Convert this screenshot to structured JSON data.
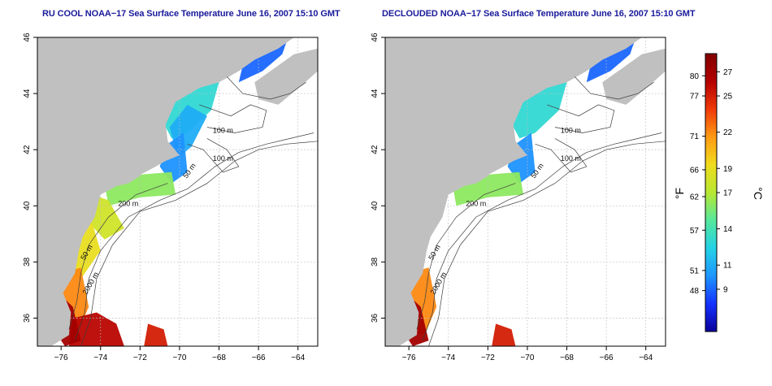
{
  "panels": [
    {
      "title": "RU COOL NOAA−17 Sea Surface Temperature June 16, 2007 15:10 GMT",
      "contour_labels": [
        "100 m",
        "100 m",
        "50 m",
        "200 m",
        "50 m",
        "2000 m"
      ],
      "coverage": "full"
    },
    {
      "title": "DECLOUDED NOAA−17 Sea Surface Temperature June 16, 2007 15:10 GMT",
      "contour_labels": [
        "100 m",
        "100 m",
        "50 m",
        "200 m",
        "50 m",
        "2000 m"
      ],
      "coverage": "declouded"
    }
  ],
  "axes": {
    "x_ticks": [
      "−76",
      "−74",
      "−72",
      "−70",
      "−68",
      "−66",
      "−64"
    ],
    "x_values": [
      -76,
      -74,
      -72,
      -70,
      -68,
      -66,
      -64
    ],
    "y_ticks": [
      "36",
      "38",
      "40",
      "42",
      "44",
      "46"
    ],
    "y_values": [
      36,
      38,
      40,
      42,
      44,
      46
    ],
    "lon_range": [
      -77.2,
      -63.0
    ],
    "lat_range": [
      35.0,
      46.0
    ]
  },
  "colorbar": {
    "f_label": "°F",
    "c_label": "°C",
    "f_ticks": [
      "80",
      "77",
      "71",
      "66",
      "62",
      "57",
      "51",
      "48"
    ],
    "f_values": [
      80,
      77,
      71,
      66,
      62,
      57,
      51,
      48
    ],
    "c_ticks": [
      "27",
      "25",
      "22",
      "19",
      "17",
      "14",
      "11",
      "9"
    ],
    "c_values": [
      27,
      25,
      22,
      19,
      17,
      14,
      11,
      9
    ],
    "c_range": [
      5.5,
      28.5
    ],
    "colors": [
      "#08009a",
      "#1432ff",
      "#1e96ff",
      "#24d2e6",
      "#55e89c",
      "#b8e832",
      "#f0dc1e",
      "#ff9a14",
      "#f03a0a",
      "#b40000",
      "#820000"
    ]
  },
  "colors": {
    "land": "#c0c0c0",
    "ocean": "#ffffff",
    "grid": "#bdbdbd",
    "contour": "#3c3c3c",
    "title": "#1a1a9c"
  }
}
